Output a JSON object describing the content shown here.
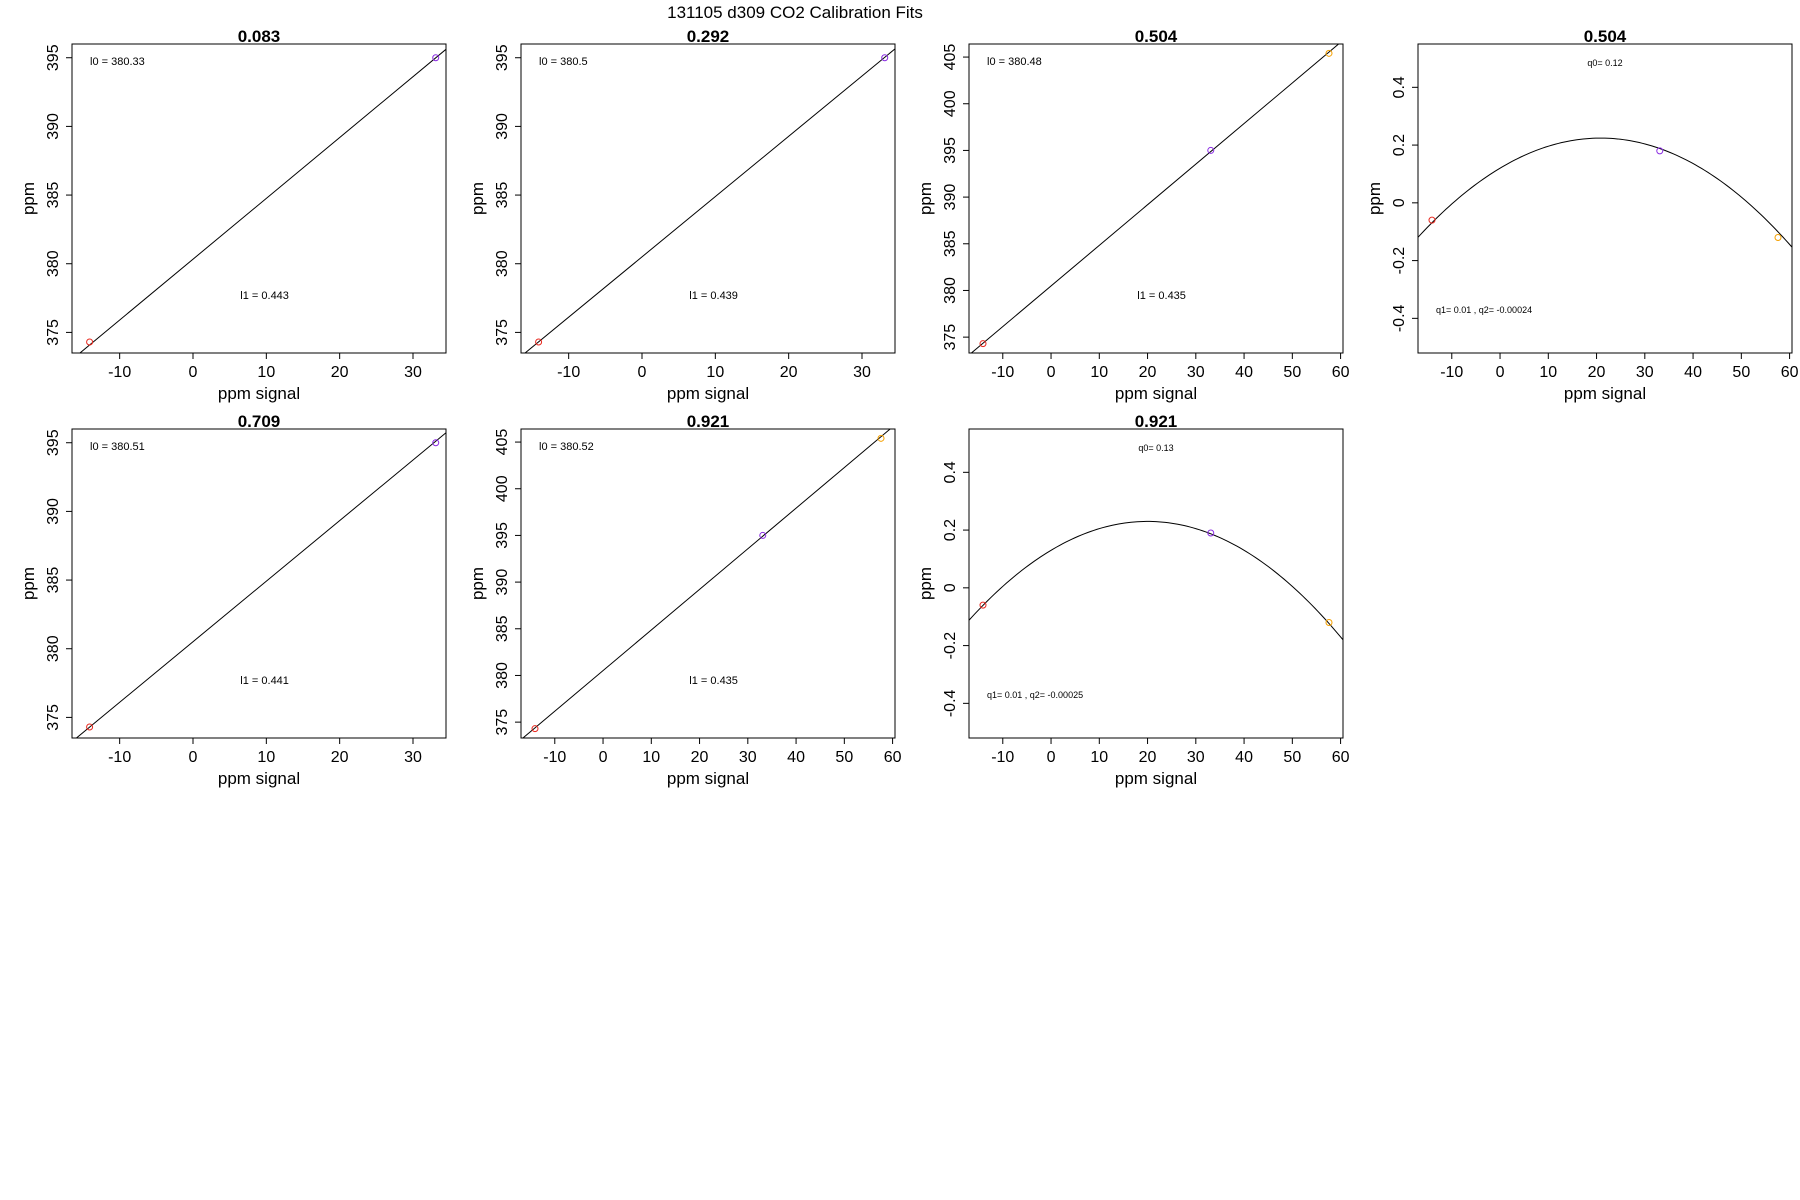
{
  "figure_title": "131105   d309   CO2 Calibration Fits",
  "colors": {
    "axis": "#000000",
    "fit_line": "#000000"
  },
  "chart_data": [
    {
      "type": "scatter",
      "fit": "linear",
      "title": "0.083",
      "xlabel": "ppm signal",
      "ylabel": "ppm",
      "xlim": [
        -16.5,
        34.5
      ],
      "ylim": [
        373.5,
        396.0
      ],
      "xticks": [
        -10,
        0,
        10,
        20,
        30
      ],
      "yticks": [
        375,
        380,
        385,
        390,
        395
      ],
      "line_coef": [
        380.33,
        0.443
      ],
      "points": [
        {
          "x": -14.1,
          "y": 374.3,
          "color": "#e8281e"
        },
        {
          "x": 33.1,
          "y": 395.0,
          "color": "#8a2be2"
        }
      ],
      "annotations": [
        "l0 =  380.33",
        "l1 =  0.443"
      ]
    },
    {
      "type": "scatter",
      "fit": "linear",
      "title": "0.292",
      "xlabel": "ppm signal",
      "ylabel": "ppm",
      "xlim": [
        -16.5,
        34.5
      ],
      "ylim": [
        373.5,
        396.0
      ],
      "xticks": [
        -10,
        0,
        10,
        20,
        30
      ],
      "yticks": [
        375,
        380,
        385,
        390,
        395
      ],
      "line_coef": [
        380.5,
        0.439
      ],
      "points": [
        {
          "x": -14.1,
          "y": 374.3,
          "color": "#e8281e"
        },
        {
          "x": 33.1,
          "y": 395.0,
          "color": "#8a2be2"
        }
      ],
      "annotations": [
        "l0 =  380.5",
        "l1 =  0.439"
      ]
    },
    {
      "type": "scatter",
      "fit": "linear",
      "title": "0.504",
      "xlabel": "ppm signal",
      "ylabel": "ppm",
      "xlim": [
        -17.0,
        60.5
      ],
      "ylim": [
        373.3,
        406.4
      ],
      "xticks": [
        -10,
        0,
        10,
        20,
        30,
        40,
        50,
        60
      ],
      "yticks": [
        375,
        380,
        385,
        390,
        395,
        400,
        405
      ],
      "line_coef": [
        380.48,
        0.435
      ],
      "points": [
        {
          "x": -14.1,
          "y": 374.3,
          "color": "#e8281e"
        },
        {
          "x": 33.1,
          "y": 395.0,
          "color": "#8a2be2"
        },
        {
          "x": 57.6,
          "y": 405.4,
          "color": "#f5a000"
        }
      ],
      "annotations": [
        "l0 =  380.48",
        "l1 =  0.435"
      ]
    },
    {
      "type": "scatter",
      "fit": "quadratic",
      "title": "0.504",
      "xlabel": "ppm signal",
      "ylabel": "ppm",
      "xlim": [
        -17.0,
        60.5
      ],
      "ylim": [
        -0.52,
        0.55
      ],
      "xticks": [
        -10,
        0,
        10,
        20,
        30,
        40,
        50,
        60
      ],
      "yticks": [
        -0.4,
        -0.2,
        0.0,
        0.2,
        0.4
      ],
      "quad_coef": [
        0.12,
        0.01,
        -0.00024
      ],
      "points": [
        {
          "x": -14.1,
          "y": -0.06,
          "color": "#e8281e"
        },
        {
          "x": 33.1,
          "y": 0.18,
          "color": "#8a2be2"
        },
        {
          "x": 57.6,
          "y": -0.12,
          "color": "#f5a000"
        }
      ],
      "annotations": [
        "q0= 0.12",
        "q1= 0.01 , q2= -0.00024"
      ]
    },
    {
      "type": "scatter",
      "fit": "linear",
      "title": "0.709",
      "xlabel": "ppm signal",
      "ylabel": "ppm",
      "xlim": [
        -16.5,
        34.5
      ],
      "ylim": [
        373.5,
        396.0
      ],
      "xticks": [
        -10,
        0,
        10,
        20,
        30
      ],
      "yticks": [
        375,
        380,
        385,
        390,
        395
      ],
      "line_coef": [
        380.51,
        0.441
      ],
      "points": [
        {
          "x": -14.1,
          "y": 374.3,
          "color": "#e8281e"
        },
        {
          "x": 33.1,
          "y": 395.0,
          "color": "#8a2be2"
        }
      ],
      "annotations": [
        "l0 =  380.51",
        "l1 =  0.441"
      ]
    },
    {
      "type": "scatter",
      "fit": "linear",
      "title": "0.921",
      "xlabel": "ppm signal",
      "ylabel": "ppm",
      "xlim": [
        -17.0,
        60.5
      ],
      "ylim": [
        373.3,
        406.4
      ],
      "xticks": [
        -10,
        0,
        10,
        20,
        30,
        40,
        50,
        60
      ],
      "yticks": [
        375,
        380,
        385,
        390,
        395,
        400,
        405
      ],
      "line_coef": [
        380.52,
        0.435
      ],
      "points": [
        {
          "x": -14.1,
          "y": 374.3,
          "color": "#e8281e"
        },
        {
          "x": 33.1,
          "y": 395.0,
          "color": "#8a2be2"
        },
        {
          "x": 57.6,
          "y": 405.4,
          "color": "#f5a000"
        }
      ],
      "annotations": [
        "l0 =  380.52",
        "l1 =  0.435"
      ]
    },
    {
      "type": "scatter",
      "fit": "quadratic",
      "title": "0.921",
      "xlabel": "ppm signal",
      "ylabel": "ppm",
      "xlim": [
        -17.0,
        60.5
      ],
      "ylim": [
        -0.52,
        0.55
      ],
      "xticks": [
        -10,
        0,
        10,
        20,
        30,
        40,
        50,
        60
      ],
      "yticks": [
        -0.4,
        -0.2,
        0.0,
        0.2,
        0.4
      ],
      "quad_coef": [
        0.13,
        0.01,
        -0.00025
      ],
      "points": [
        {
          "x": -14.1,
          "y": -0.06,
          "color": "#e8281e"
        },
        {
          "x": 33.1,
          "y": 0.19,
          "color": "#8a2be2"
        },
        {
          "x": 57.6,
          "y": -0.12,
          "color": "#f5a000"
        }
      ],
      "annotations": [
        "q0= 0.13",
        "q1= 0.01 , q2= -0.00025"
      ]
    }
  ]
}
